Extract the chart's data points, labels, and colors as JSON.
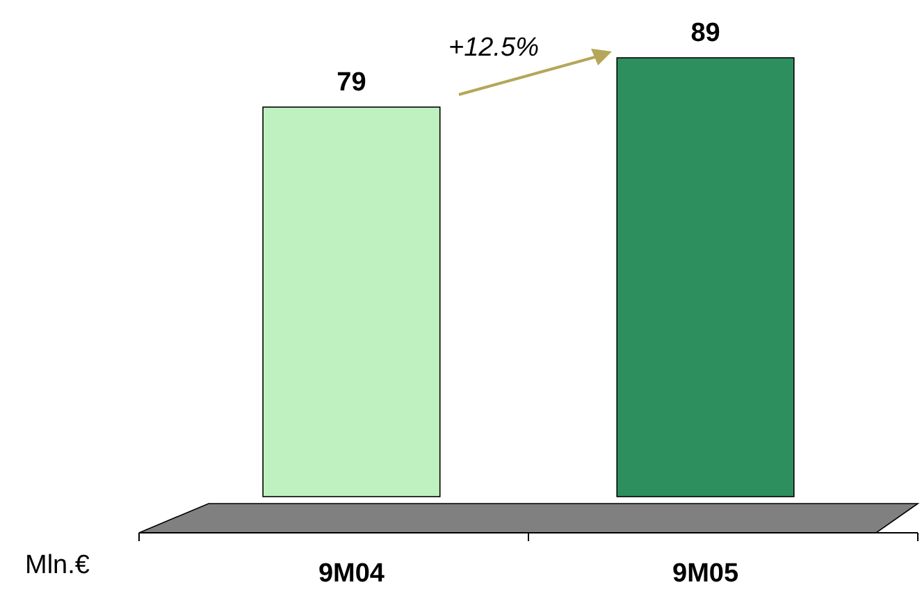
{
  "chart_data": {
    "type": "bar",
    "categories": [
      "9M04",
      "9M05"
    ],
    "values": [
      79,
      89
    ],
    "colors": [
      "#bff0bf",
      "#2e8f5e"
    ],
    "data_labels": true,
    "ylabel": "Mln.€",
    "annotations": [
      "+12.5%"
    ]
  }
}
